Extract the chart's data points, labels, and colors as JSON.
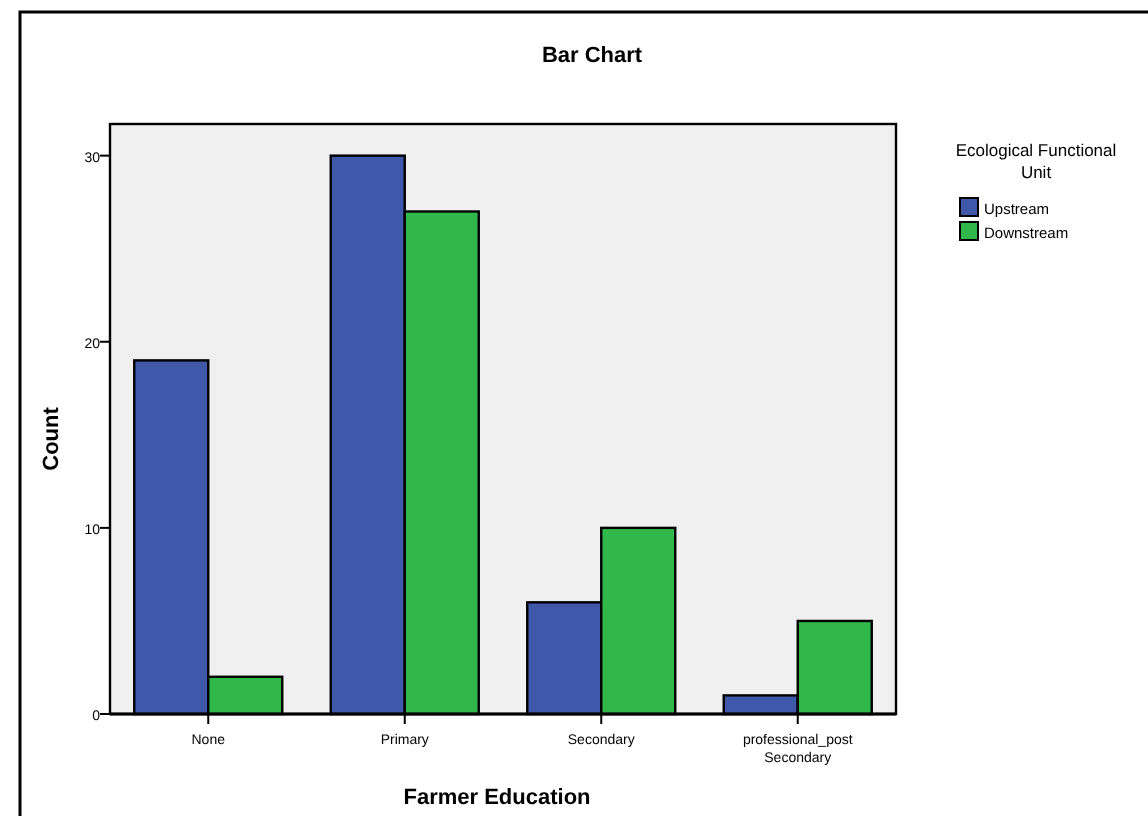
{
  "chart_data": {
    "type": "bar",
    "title": "Bar Chart",
    "xlabel": "Farmer Education",
    "ylabel": "Count",
    "legend_title": "Ecological Functional\nUnit",
    "categories": [
      "None",
      "Primary",
      "Secondary",
      "professional_post\nSecondary"
    ],
    "series": [
      {
        "name": "Upstream",
        "color": "#3f58a9",
        "values": [
          19,
          30,
          6,
          1
        ]
      },
      {
        "name": "Downstream",
        "color": "#30b84a",
        "values": [
          2,
          27,
          10,
          5
        ]
      }
    ],
    "ylim": [
      0,
      31.7
    ],
    "yticks": [
      0,
      10,
      20,
      30
    ],
    "grid": false,
    "legend": "right"
  }
}
